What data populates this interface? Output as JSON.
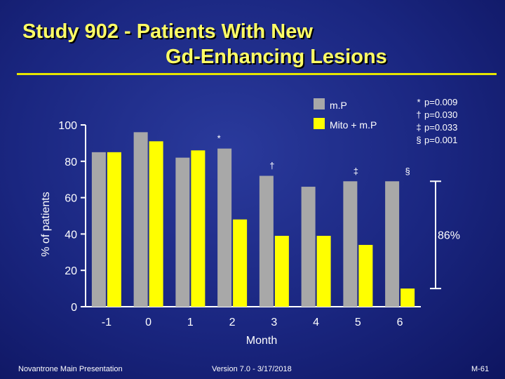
{
  "title": {
    "line1": "Study 902 - Patients With New",
    "line2": "Gd-Enhancing Lesions"
  },
  "colors": {
    "background": "#1a2680",
    "title": "#ffff66",
    "rule": "#e6e600",
    "mP": "#a8a8a8",
    "mitoMP": "#ffff00",
    "text": "#ffffff"
  },
  "chart_data": {
    "type": "bar",
    "title": "",
    "xlabel": "Month",
    "ylabel": "% of patients",
    "categories": [
      "-1",
      "0",
      "1",
      "2",
      "3",
      "4",
      "5",
      "6"
    ],
    "yticks": [
      "0",
      "20",
      "40",
      "60",
      "80",
      "100"
    ],
    "ylim": [
      0,
      100
    ],
    "grid": false,
    "legend_position": "top-right",
    "series": [
      {
        "name": "m.P",
        "color": "#a8a8a8",
        "values": [
          85,
          96,
          82,
          87,
          72,
          66,
          69,
          69
        ]
      },
      {
        "name": "Mito + m.P",
        "color": "#ffff00",
        "values": [
          85,
          91,
          86,
          48,
          39,
          39,
          34,
          10
        ]
      }
    ],
    "markers": [
      {
        "category": "2",
        "symbol": "*"
      },
      {
        "category": "3",
        "symbol": "†"
      },
      {
        "category": "5",
        "symbol": "‡"
      },
      {
        "category": "6",
        "symbol": "§"
      }
    ],
    "significance": [
      {
        "symbol": "*",
        "label": "p=0.009"
      },
      {
        "symbol": "†",
        "label": "p=0.030"
      },
      {
        "symbol": "‡",
        "label": "p=0.033"
      },
      {
        "symbol": "§",
        "label": "p=0.001"
      }
    ],
    "reduction_annotation": "86%"
  },
  "footer": {
    "left": "Novantrone Main Presentation",
    "center": "Version 7.0 - 3/17/2018",
    "right": "M-61"
  }
}
